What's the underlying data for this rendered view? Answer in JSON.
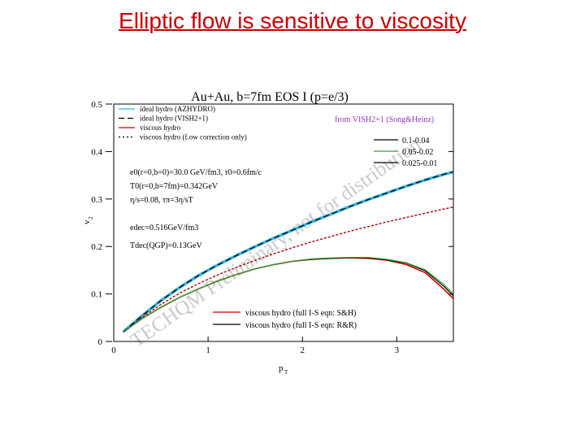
{
  "slide": {
    "title": "Elliptic flow is sensitive to viscosity"
  },
  "colors": {
    "title": "#cc0000",
    "cyan": "#33b5e5",
    "red": "#cc0000",
    "purple": "#9b30c8",
    "green": "#33aa33",
    "watermark": "#c9c9c9"
  },
  "chart_data": {
    "type": "line",
    "title": "Au+Au, b=7fm EOS I (p=e/3)",
    "xlabel": "p",
    "xlabel_sub": "T",
    "ylabel": "v",
    "ylabel_sub": "2",
    "xlim": [
      0,
      3.6
    ],
    "ylim": [
      0,
      0.5
    ],
    "xticks": [
      0,
      1,
      2,
      3
    ],
    "xtick_labels": [
      "0",
      "1",
      "2",
      "3"
    ],
    "yticks": [
      0,
      0.1,
      0.2,
      0.3,
      0.4,
      0.5
    ],
    "ytick_labels": [
      "0",
      "0.1",
      "0.2",
      "0.3",
      "0.4",
      "0.5"
    ],
    "legend_top_left": [
      {
        "label": "ideal hydro (AZHYDRO)",
        "color": "#33b5e5",
        "dash": "solid"
      },
      {
        "label": "ideal hydro (VISH2+1)",
        "color": "#000000",
        "dash": "dashed"
      },
      {
        "label": "viscous hydro",
        "color": "#cc0000",
        "dash": "solid"
      },
      {
        "label": "viscous hydro (f.ow correction only)",
        "color": "#000000",
        "dash": "dotted"
      }
    ],
    "source_label": "from VISH2+1 (Song&Heinz)",
    "legend_right": [
      {
        "label": "0.1-0.04",
        "color": "#000000"
      },
      {
        "label": "0.05-0.02",
        "color": "#33aa33"
      },
      {
        "label": "0.025-0.01",
        "color": "#000000"
      }
    ],
    "parameters": [
      "e0(r=0,b=0)=30.0 GeV/fm3, τ0=0.6fm/c",
      "T0(r=0,b=7fm)=0.342GeV",
      "η/s=0.08,   τπ=3η/sT",
      "edec=0.516GeV/fm3",
      "Tdec(QGP)=0.13GeV"
    ],
    "legend_bottom": [
      {
        "label": "viscous hydro (full I-S eqn: S&H)",
        "color": "#cc0000"
      },
      {
        "label": "viscous hydro (full I-S eqn: R&R)",
        "color": "#000000"
      }
    ],
    "watermark": "TECHQM Preliminary, not for distribution",
    "series": [
      {
        "name": "ideal hydro (AZHYDRO)",
        "color": "#33b5e5",
        "width": 3.5,
        "dash": "",
        "x": [
          0.1,
          0.3,
          0.5,
          0.7,
          0.9,
          1.1,
          1.3,
          1.5,
          1.7,
          1.9,
          2.1,
          2.3,
          2.5,
          2.7,
          2.9,
          3.1,
          3.3,
          3.5,
          3.6
        ],
        "y": [
          0.02,
          0.054,
          0.086,
          0.114,
          0.139,
          0.161,
          0.181,
          0.2,
          0.218,
          0.235,
          0.252,
          0.268,
          0.284,
          0.299,
          0.313,
          0.327,
          0.34,
          0.352,
          0.357
        ]
      },
      {
        "name": "ideal hydro (VISH2+1)",
        "color": "#000000",
        "width": 1.3,
        "dash": "7,4",
        "x": [
          0.1,
          0.3,
          0.5,
          0.7,
          0.9,
          1.1,
          1.3,
          1.5,
          1.7,
          1.9,
          2.1,
          2.3,
          2.5,
          2.7,
          2.9,
          3.1,
          3.3,
          3.5,
          3.6
        ],
        "y": [
          0.02,
          0.054,
          0.086,
          0.114,
          0.139,
          0.161,
          0.181,
          0.2,
          0.218,
          0.235,
          0.252,
          0.268,
          0.284,
          0.299,
          0.313,
          0.327,
          0.34,
          0.352,
          0.357
        ]
      },
      {
        "name": "viscous hydro (f.ow correction only)",
        "color": "#000000",
        "width": 1.3,
        "dash": "2,3",
        "x": [
          0.1,
          0.3,
          0.5,
          0.7,
          0.9,
          1.1,
          1.3,
          1.5,
          1.7,
          1.9,
          2.1,
          2.3,
          2.5,
          2.7,
          2.9,
          3.1,
          3.3,
          3.5,
          3.6
        ],
        "y": [
          0.02,
          0.05,
          0.078,
          0.102,
          0.122,
          0.14,
          0.156,
          0.171,
          0.185,
          0.198,
          0.21,
          0.221,
          0.232,
          0.242,
          0.252,
          0.261,
          0.27,
          0.279,
          0.283
        ]
      },
      {
        "name": "viscous hydro",
        "color": "#cc0000",
        "width": 1.3,
        "dash": "3,2",
        "x": [
          0.1,
          0.3,
          0.5,
          0.7,
          0.9,
          1.1,
          1.3,
          1.5,
          1.7,
          1.9,
          2.1,
          2.3,
          2.5,
          2.7,
          2.9,
          3.1,
          3.3,
          3.5,
          3.6
        ],
        "y": [
          0.02,
          0.05,
          0.078,
          0.102,
          0.122,
          0.14,
          0.156,
          0.171,
          0.185,
          0.198,
          0.21,
          0.221,
          0.232,
          0.242,
          0.252,
          0.261,
          0.27,
          0.279,
          0.283
        ]
      },
      {
        "name": "viscous hydro (full I-S eqn: S&H)",
        "color": "#cc0000",
        "width": 1.6,
        "dash": "",
        "x": [
          0.1,
          0.3,
          0.5,
          0.7,
          0.9,
          1.1,
          1.3,
          1.5,
          1.7,
          1.9,
          2.1,
          2.3,
          2.5,
          2.7,
          2.9,
          3.1,
          3.3,
          3.5,
          3.6
        ],
        "y": [
          0.02,
          0.048,
          0.072,
          0.093,
          0.111,
          0.127,
          0.141,
          0.153,
          0.162,
          0.169,
          0.173,
          0.175,
          0.176,
          0.175,
          0.171,
          0.162,
          0.145,
          0.11,
          0.09
        ]
      },
      {
        "name": "viscous hydro (full I-S eqn: R&R)",
        "color": "#000000",
        "width": 1.2,
        "dash": "",
        "x": [
          0.1,
          0.3,
          0.5,
          0.7,
          0.9,
          1.1,
          1.3,
          1.5,
          1.7,
          1.9,
          2.1,
          2.3,
          2.5,
          2.7,
          2.9,
          3.1,
          3.3,
          3.5,
          3.6
        ],
        "y": [
          0.02,
          0.048,
          0.072,
          0.093,
          0.111,
          0.127,
          0.141,
          0.153,
          0.162,
          0.169,
          0.173,
          0.175,
          0.176,
          0.176,
          0.172,
          0.165,
          0.149,
          0.116,
          0.096
        ]
      },
      {
        "name": "0.05-0.02",
        "color": "#33aa33",
        "width": 1.2,
        "dash": "",
        "x": [
          0.1,
          0.3,
          0.5,
          0.7,
          0.9,
          1.1,
          1.3,
          1.5,
          1.7,
          1.9,
          2.1,
          2.3,
          2.5,
          2.7,
          2.9,
          3.1,
          3.3,
          3.5,
          3.6
        ],
        "y": [
          0.02,
          0.048,
          0.072,
          0.093,
          0.111,
          0.127,
          0.141,
          0.153,
          0.162,
          0.169,
          0.174,
          0.176,
          0.177,
          0.177,
          0.173,
          0.166,
          0.151,
          0.12,
          0.1
        ]
      }
    ]
  }
}
